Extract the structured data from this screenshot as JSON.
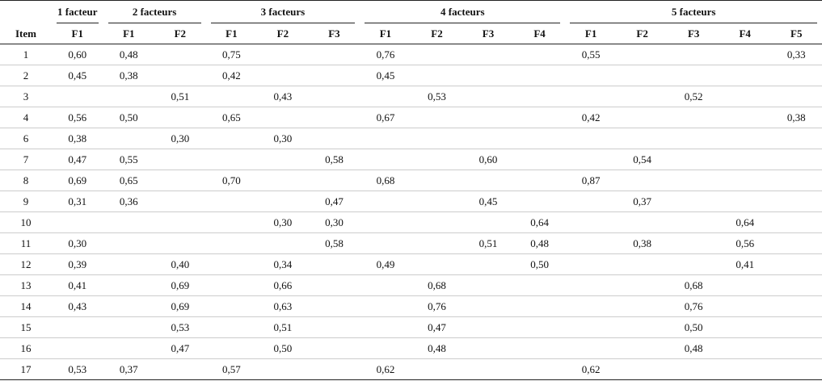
{
  "table": {
    "item_header": "Item",
    "groups": [
      {
        "label": "1 facteur",
        "columns": [
          "F1"
        ]
      },
      {
        "label": "2 facteurs",
        "columns": [
          "F1",
          "F2"
        ]
      },
      {
        "label": "3 facteurs",
        "columns": [
          "F1",
          "F2",
          "F3"
        ]
      },
      {
        "label": "4 facteurs",
        "columns": [
          "F1",
          "F2",
          "F3",
          "F4"
        ]
      },
      {
        "label": "5 facteurs",
        "columns": [
          "F1",
          "F2",
          "F3",
          "F4",
          "F5"
        ]
      }
    ],
    "rows": [
      {
        "item": "1",
        "cells": [
          "0,60",
          "0,48",
          null,
          "0,75",
          null,
          null,
          "0,76",
          null,
          null,
          null,
          "0,55",
          null,
          null,
          null,
          "0,33"
        ]
      },
      {
        "item": "2",
        "cells": [
          "0,45",
          "0,38",
          null,
          "0,42",
          null,
          null,
          "0,45",
          null,
          null,
          null,
          null,
          null,
          null,
          null,
          null
        ]
      },
      {
        "item": "3",
        "cells": [
          null,
          null,
          "0,51",
          null,
          "0,43",
          null,
          null,
          "0,53",
          null,
          null,
          null,
          null,
          "0,52",
          null,
          null
        ]
      },
      {
        "item": "4",
        "cells": [
          "0,56",
          "0,50",
          null,
          "0,65",
          null,
          null,
          "0,67",
          null,
          null,
          null,
          "0,42",
          null,
          null,
          null,
          "0,38"
        ]
      },
      {
        "item": "6",
        "cells": [
          "0,38",
          null,
          "0,30",
          null,
          "0,30",
          null,
          null,
          null,
          null,
          null,
          null,
          null,
          null,
          null,
          null
        ]
      },
      {
        "item": "7",
        "cells": [
          "0,47",
          "0,55",
          null,
          null,
          null,
          "0,58",
          null,
          null,
          "0,60",
          null,
          null,
          "0,54",
          null,
          null,
          null
        ]
      },
      {
        "item": "8",
        "cells": [
          "0,69",
          "0,65",
          null,
          "0,70",
          null,
          null,
          "0,68",
          null,
          null,
          null,
          "0,87",
          null,
          null,
          null,
          null
        ]
      },
      {
        "item": "9",
        "cells": [
          "0,31",
          "0,36",
          null,
          null,
          null,
          "0,47",
          null,
          null,
          "0,45",
          null,
          null,
          "0,37",
          null,
          null,
          null
        ]
      },
      {
        "item": "10",
        "cells": [
          null,
          null,
          null,
          null,
          "0,30",
          "0,30",
          null,
          null,
          null,
          "0,64",
          null,
          null,
          null,
          "0,64",
          null
        ]
      },
      {
        "item": "11",
        "cells": [
          "0,30",
          null,
          null,
          null,
          null,
          "0,58",
          null,
          null,
          "0,51",
          "0,48",
          null,
          "0,38",
          null,
          "0,56",
          null
        ]
      },
      {
        "item": "12",
        "cells": [
          "0,39",
          null,
          "0,40",
          null,
          "0,34",
          null,
          "0,49",
          null,
          null,
          "0,50",
          null,
          null,
          null,
          "0,41",
          null
        ]
      },
      {
        "item": "13",
        "cells": [
          "0,41",
          null,
          "0,69",
          null,
          "0,66",
          null,
          null,
          "0,68",
          null,
          null,
          null,
          null,
          "0,68",
          null,
          null
        ]
      },
      {
        "item": "14",
        "cells": [
          "0,43",
          null,
          "0,69",
          null,
          "0,63",
          null,
          null,
          "0,76",
          null,
          null,
          null,
          null,
          "0,76",
          null,
          null
        ]
      },
      {
        "item": "15",
        "cells": [
          null,
          null,
          "0,53",
          null,
          "0,51",
          null,
          null,
          "0,47",
          null,
          null,
          null,
          null,
          "0,50",
          null,
          null
        ]
      },
      {
        "item": "16",
        "cells": [
          null,
          null,
          "0,47",
          null,
          "0,50",
          null,
          null,
          "0,48",
          null,
          null,
          null,
          null,
          "0,48",
          null,
          null
        ]
      },
      {
        "item": "17",
        "cells": [
          "0,53",
          "0,37",
          null,
          "0,57",
          null,
          null,
          "0,62",
          null,
          null,
          null,
          "0,62",
          null,
          null,
          null,
          null
        ]
      }
    ]
  }
}
